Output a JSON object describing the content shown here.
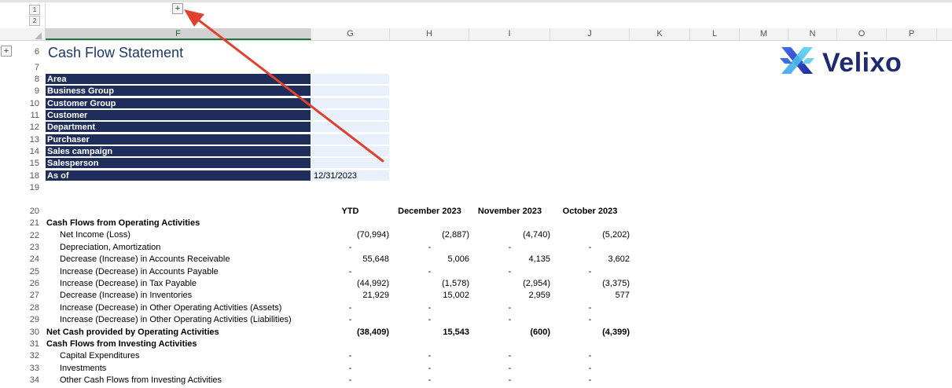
{
  "outline": {
    "top_levels": [
      "1",
      "2"
    ],
    "left_levels": [
      "1",
      "2"
    ],
    "top_expand": "+",
    "left_expand": "+"
  },
  "columns": [
    "F",
    "G",
    "H",
    "I",
    "J",
    "K",
    "L",
    "M",
    "N",
    "O",
    "P"
  ],
  "selected_column": "F",
  "row_numbers": [
    "6",
    "7",
    "8",
    "9",
    "10",
    "11",
    "12",
    "13",
    "14",
    "15",
    "18",
    "19",
    "20",
    "21",
    "22",
    "23",
    "24",
    "25",
    "26",
    "27",
    "28",
    "29",
    "30",
    "31",
    "32",
    "33",
    "34"
  ],
  "title": "Cash Flow Statement",
  "logo": {
    "text": "Velixo",
    "icon": "velixo-x-logo-icon"
  },
  "filters": [
    {
      "label": "Area",
      "value": ""
    },
    {
      "label": "Business Group",
      "value": ""
    },
    {
      "label": "Customer Group",
      "value": ""
    },
    {
      "label": "Customer",
      "value": ""
    },
    {
      "label": "Department",
      "value": ""
    },
    {
      "label": "Purchaser",
      "value": ""
    },
    {
      "label": "Sales campaign",
      "value": ""
    },
    {
      "label": "Salesperson",
      "value": ""
    },
    {
      "label": "As of",
      "value": "12/31/2023"
    }
  ],
  "period_headers": [
    "YTD",
    "December 2023",
    "November 2023",
    "October 2023"
  ],
  "statement_rows": [
    {
      "label": "Cash Flows from Operating Activities",
      "bold": true,
      "indent": false,
      "values": [
        "",
        "",
        "",
        ""
      ]
    },
    {
      "label": "Net Income (Loss)",
      "bold": false,
      "indent": true,
      "values": [
        "(70,994)",
        "(2,887)",
        "(4,740)",
        "(5,202)"
      ]
    },
    {
      "label": "Depreciation, Amortization",
      "bold": false,
      "indent": true,
      "values": [
        "-",
        "-",
        "-",
        "-"
      ]
    },
    {
      "label": "Decrease (Increase) in Accounts Receivable",
      "bold": false,
      "indent": true,
      "values": [
        "55,648",
        "5,006",
        "4,135",
        "3,602"
      ]
    },
    {
      "label": "Increase (Decrease) in Accounts Payable",
      "bold": false,
      "indent": true,
      "values": [
        "-",
        "-",
        "-",
        "-"
      ]
    },
    {
      "label": "Increase (Decrease) in Tax Payable",
      "bold": false,
      "indent": true,
      "values": [
        "(44,992)",
        "(1,578)",
        "(2,954)",
        "(3,375)"
      ]
    },
    {
      "label": "Decrease (Increase) in Inventories",
      "bold": false,
      "indent": true,
      "values": [
        "21,929",
        "15,002",
        "2,959",
        "577"
      ]
    },
    {
      "label": "Increase (Decrease) in Other Operating Activities (Assets)",
      "bold": false,
      "indent": true,
      "values": [
        "-",
        "-",
        "-",
        "-"
      ]
    },
    {
      "label": "Increase (Decrease) in Other Operating Activities (Liabilities)",
      "bold": false,
      "indent": true,
      "values": [
        "-",
        "-",
        "-",
        "-"
      ]
    },
    {
      "label": "Net Cash provided by Operating Activities",
      "bold": true,
      "indent": false,
      "values": [
        "(38,409)",
        "15,543",
        "(600)",
        "(4,399)"
      ]
    },
    {
      "label": "Cash Flows from Investing Activities",
      "bold": true,
      "indent": false,
      "values": [
        "",
        "",
        "",
        ""
      ]
    },
    {
      "label": "Capital Expenditures",
      "bold": false,
      "indent": true,
      "values": [
        "-",
        "-",
        "-",
        "-"
      ]
    },
    {
      "label": "Investments",
      "bold": false,
      "indent": true,
      "values": [
        "-",
        "-",
        "-",
        "-"
      ]
    },
    {
      "label": "Other Cash Flows from Investing Activities",
      "bold": false,
      "indent": true,
      "values": [
        "-",
        "-",
        "-",
        "-"
      ]
    }
  ],
  "colors": {
    "filter_label_bg": "#1f2d5a",
    "filter_value_bg": "#e8f1fb",
    "title": "#1f3864",
    "arrow": "#e0402e",
    "logo_text": "#1e2a6e"
  }
}
